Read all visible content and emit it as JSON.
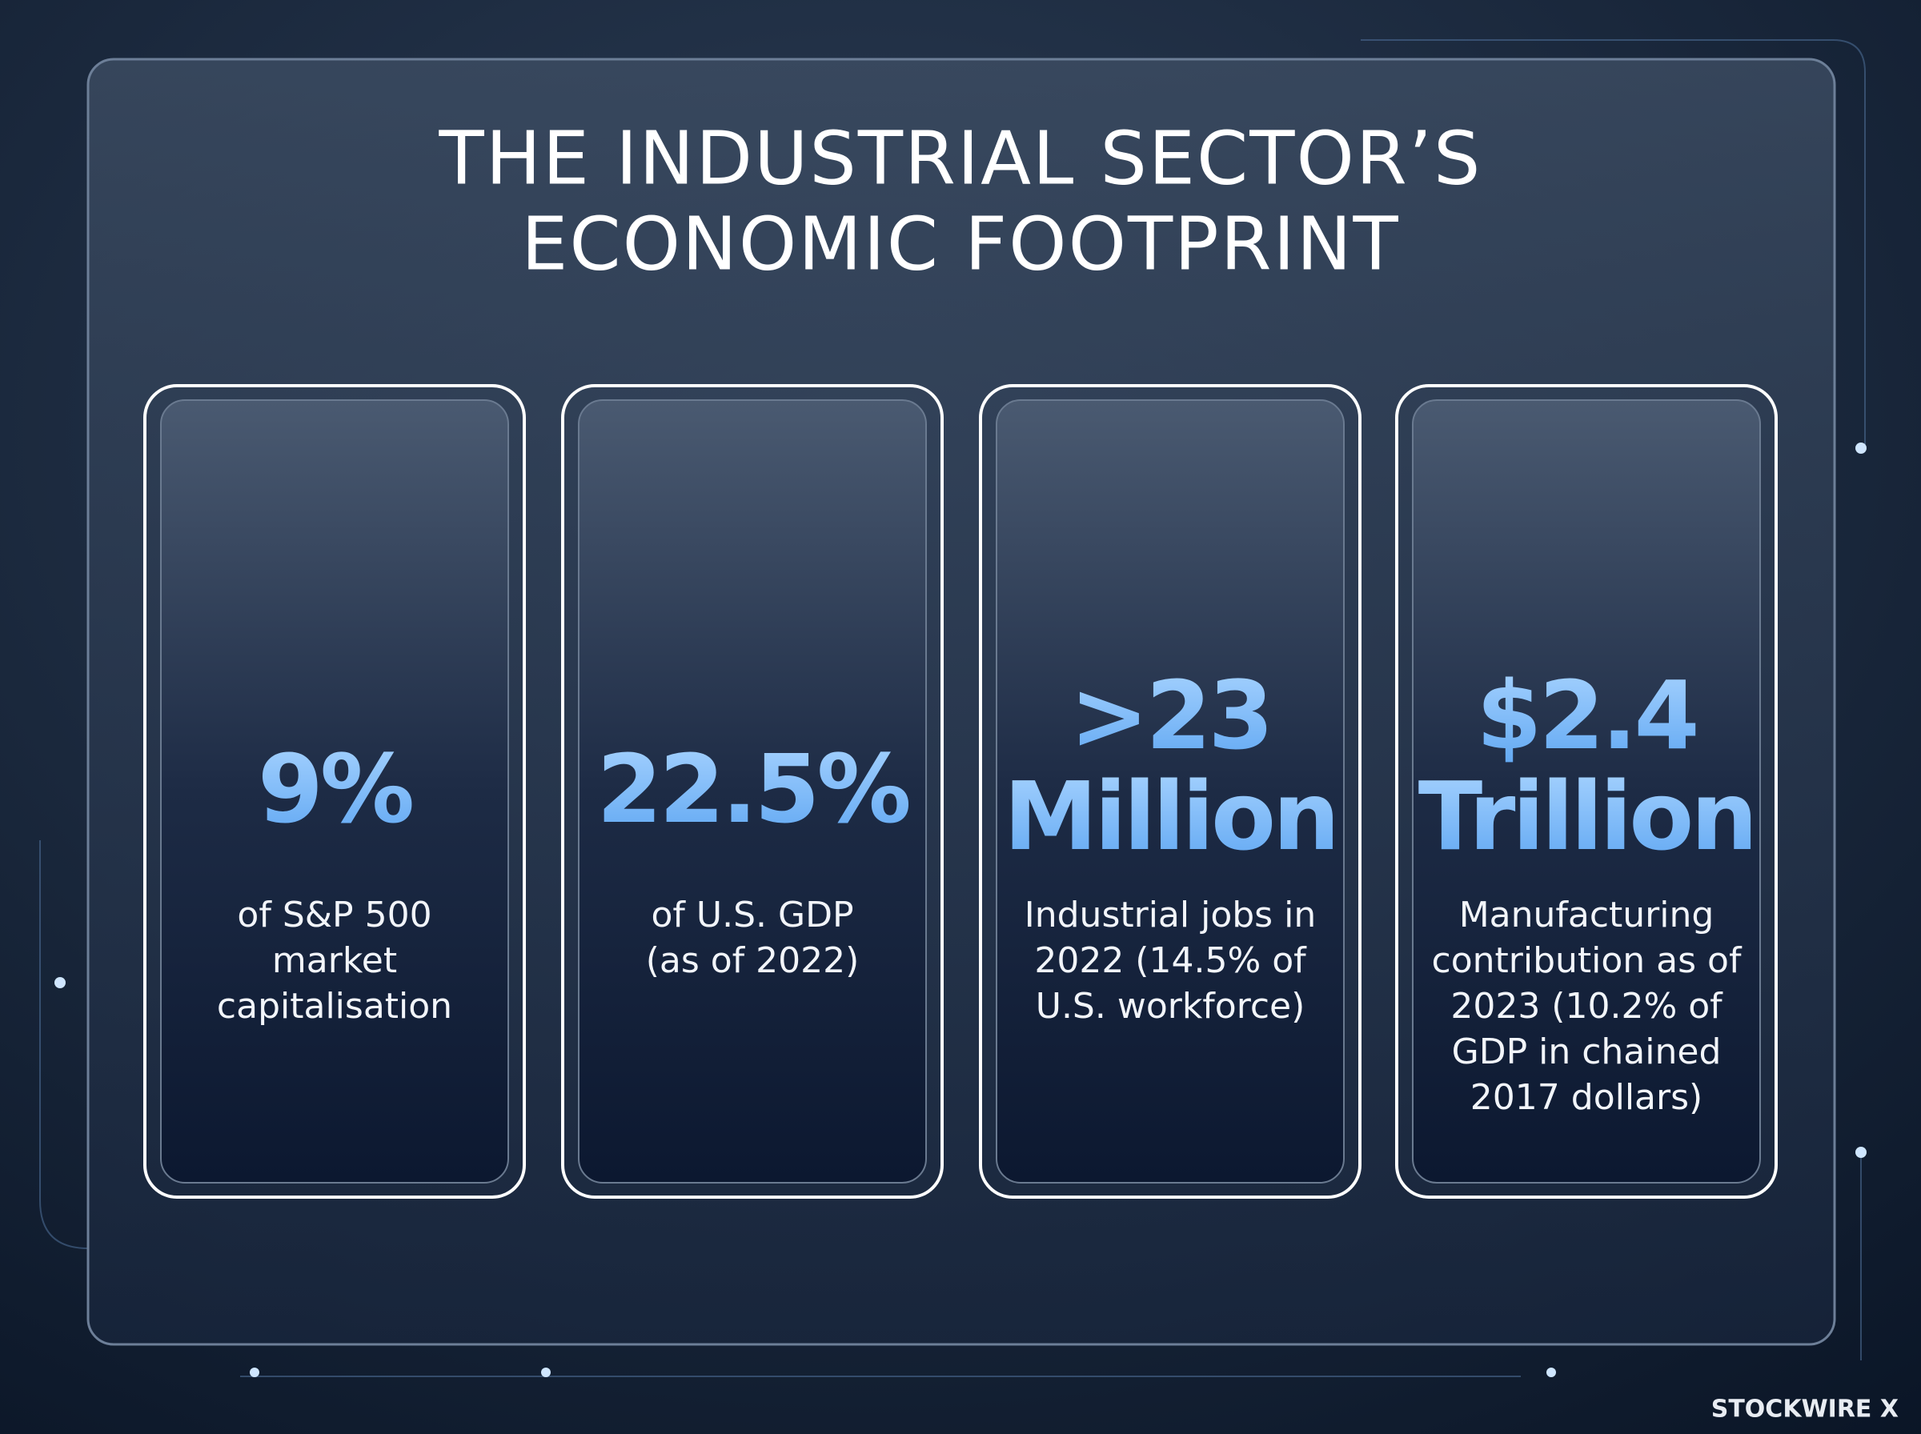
{
  "header": {
    "title_lines": [
      "THE INDUSTRIAL SECTOR’S",
      "ECONOMIC FOOTPRINT"
    ]
  },
  "cards": [
    {
      "stat_lines": [
        "9%"
      ],
      "description_lines": [
        "of S&P 500",
        "market",
        "capitalisation"
      ]
    },
    {
      "stat_lines": [
        "22.5%"
      ],
      "description_lines": [
        "of U.S. GDP",
        "(as of 2022)"
      ]
    },
    {
      "stat_lines": [
        ">23",
        "Million"
      ],
      "description_lines": [
        "Industrial jobs in",
        "2022 (14.5% of",
        "U.S. workforce)"
      ]
    },
    {
      "stat_lines": [
        "$2.4",
        "Trillion"
      ],
      "description_lines": [
        "Manufacturing",
        "contribution as of",
        "2023 (10.2% of",
        "GDP in chained",
        "2017 dollars)"
      ]
    }
  ],
  "footer": {
    "brand": "STOCKWIRE X"
  }
}
